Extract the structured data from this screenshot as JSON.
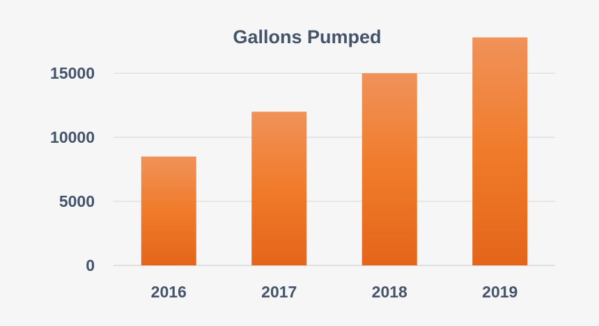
{
  "chart_data": {
    "type": "bar",
    "title": "Gallons Pumped",
    "categories": [
      "2016",
      "2017",
      "2018",
      "2019"
    ],
    "values": [
      8500,
      12000,
      15000,
      17800
    ],
    "xlabel": "",
    "ylabel": "",
    "ylim": [
      0,
      18000
    ],
    "yticks": [
      0,
      5000,
      10000,
      15000
    ],
    "grid": true,
    "legend": "none",
    "colors": {
      "bar_top": "#f0925a",
      "bar_mid": "#f07b2a",
      "bar_bottom": "#e4651a",
      "text": "#44546a",
      "grid": "#d9d9d9"
    }
  }
}
